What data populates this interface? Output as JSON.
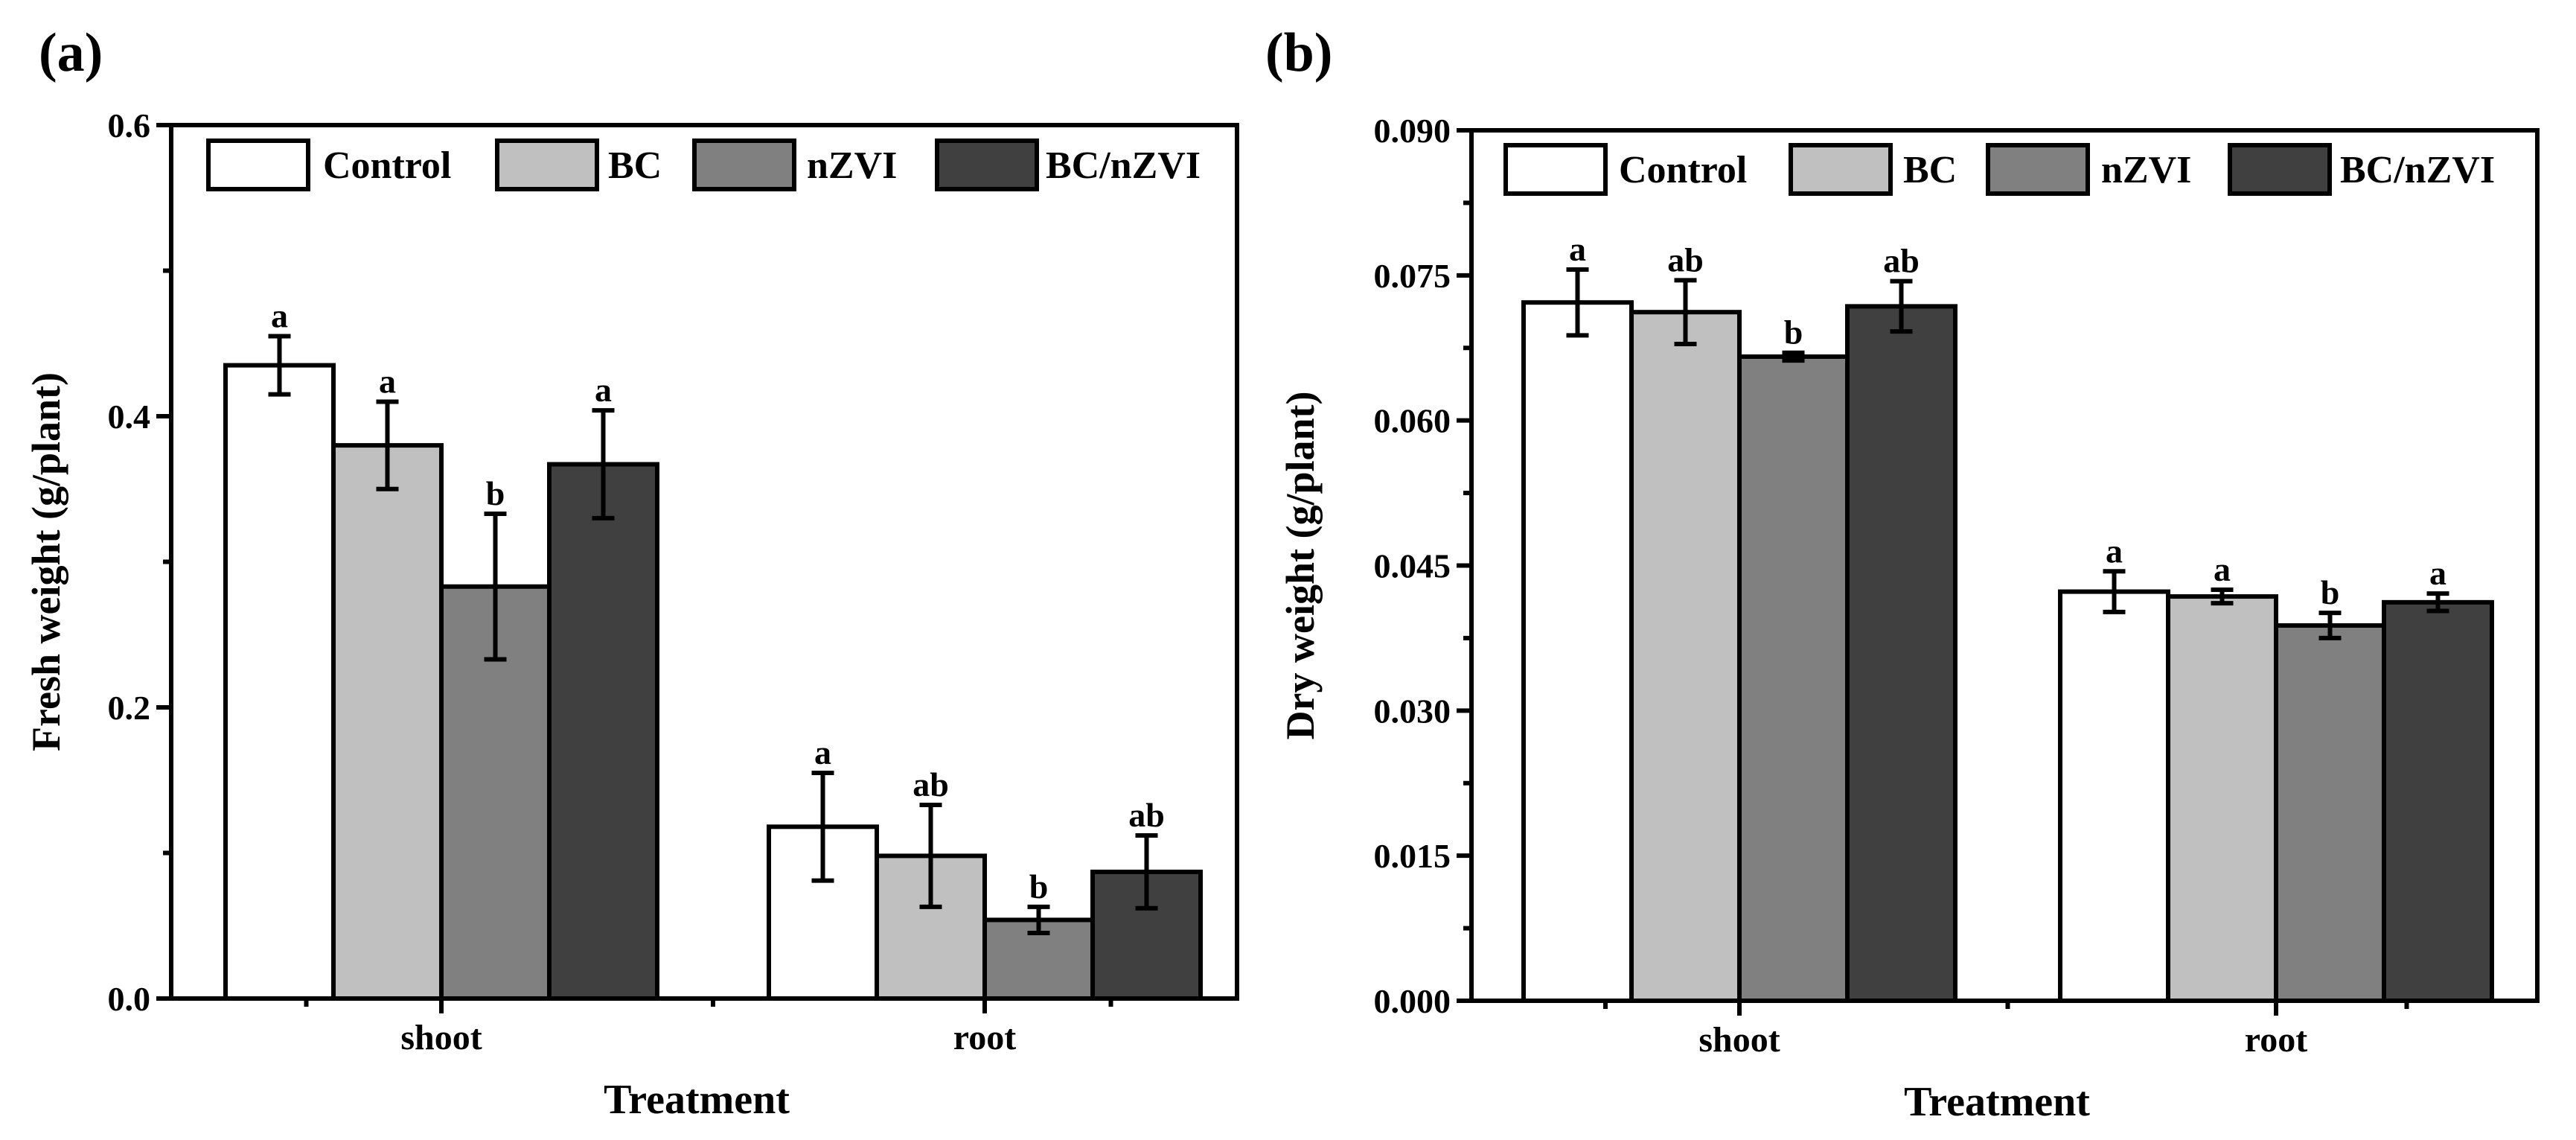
{
  "chart_data": [
    {
      "panel_label": "(a)",
      "type": "bar",
      "title": "",
      "xlabel": "Treatment",
      "ylabel": "Fresh weight (g/plant)",
      "ylim": [
        0,
        0.6
      ],
      "yticks": [
        0.0,
        0.2,
        0.4,
        0.6
      ],
      "ytick_labels": [
        "0.0",
        "0.2",
        "0.4",
        "0.6"
      ],
      "minor_ticks_per_major": 2,
      "categories": [
        "shoot",
        "root"
      ],
      "legend_position": "top",
      "series": [
        {
          "name": "Control",
          "color": "#ffffff",
          "values": [
            0.435,
            0.118
          ],
          "errors": [
            0.02,
            0.037
          ],
          "letters": [
            "a",
            "a"
          ]
        },
        {
          "name": "BC",
          "color": "#c0c0c0",
          "values": [
            0.38,
            0.098
          ],
          "errors": [
            0.03,
            0.035
          ],
          "letters": [
            "a",
            "ab"
          ]
        },
        {
          "name": "nZVI",
          "color": "#808080",
          "values": [
            0.283,
            0.054
          ],
          "errors": [
            0.05,
            0.009
          ],
          "letters": [
            "b",
            "b"
          ]
        },
        {
          "name": "BC/nZVI",
          "color": "#404040",
          "values": [
            0.367,
            0.087
          ],
          "errors": [
            0.037,
            0.025
          ],
          "letters": [
            "a",
            "ab"
          ]
        }
      ]
    },
    {
      "panel_label": "(b)",
      "type": "bar",
      "title": "",
      "xlabel": "Treatment",
      "ylabel": "Dry weight (g/plant)",
      "ylim": [
        0,
        0.09
      ],
      "yticks": [
        0.0,
        0.015,
        0.03,
        0.045,
        0.06,
        0.075,
        0.09
      ],
      "ytick_labels": [
        "0.000",
        "0.015",
        "0.030",
        "0.045",
        "0.060",
        "0.075",
        "0.090"
      ],
      "minor_ticks_per_major": 2,
      "categories": [
        "shoot",
        "root"
      ],
      "legend_position": "top",
      "series": [
        {
          "name": "Control",
          "color": "#ffffff",
          "values": [
            0.0722,
            0.0423
          ],
          "errors": [
            0.0034,
            0.0021
          ],
          "letters": [
            "a",
            "a"
          ]
        },
        {
          "name": "BC",
          "color": "#c0c0c0",
          "values": [
            0.0712,
            0.0418
          ],
          "errors": [
            0.0033,
            0.0007
          ],
          "letters": [
            "ab",
            "a"
          ]
        },
        {
          "name": "nZVI",
          "color": "#808080",
          "values": [
            0.0666,
            0.0388
          ],
          "errors": [
            0.0004,
            0.0013
          ],
          "letters": [
            "b",
            "b"
          ]
        },
        {
          "name": "BC/nZVI",
          "color": "#404040",
          "values": [
            0.0718,
            0.0412
          ],
          "errors": [
            0.0026,
            0.0009
          ],
          "letters": [
            "ab",
            "a"
          ]
        }
      ]
    }
  ]
}
